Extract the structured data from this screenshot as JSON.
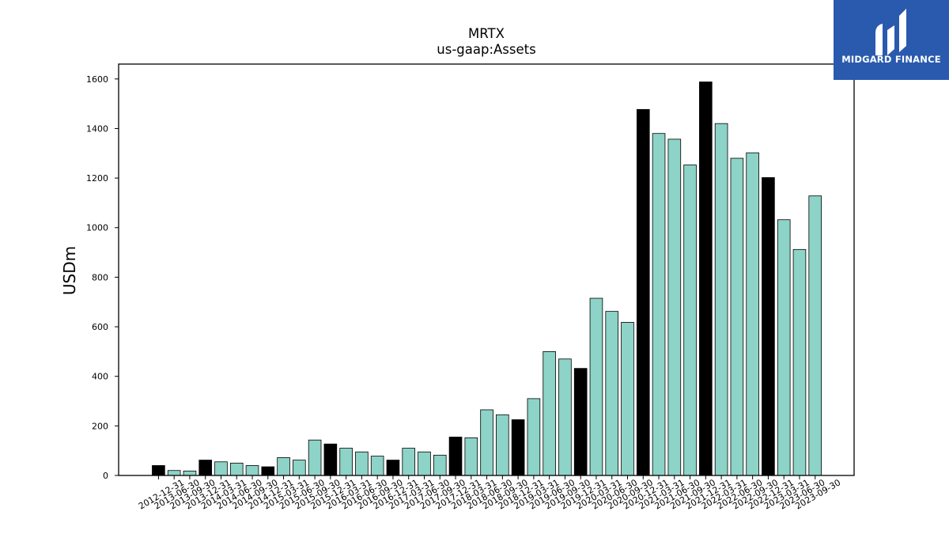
{
  "chart_data": {
    "type": "bar",
    "title": "MRTX",
    "subtitle": "us-gaap:Assets",
    "ylabel": "USDm",
    "xlabel": "",
    "ylim": [
      0,
      1660
    ],
    "yticks": [
      0,
      200,
      400,
      600,
      800,
      1000,
      1200,
      1400,
      1600
    ],
    "grid": false,
    "colors": {
      "quarter": "#8dd3c7",
      "year_end": "#000000",
      "edge": "#000000"
    },
    "categories": [
      "2012-12-31",
      "2013-06-30",
      "2013-09-30",
      "2013-12-31",
      "2014-03-31",
      "2014-06-30",
      "2014-09-30",
      "2014-12-31",
      "2015-03-31",
      "2015-06-30",
      "2015-09-30",
      "2015-12-31",
      "2016-03-31",
      "2016-06-30",
      "2016-09-30",
      "2016-12-31",
      "2017-03-31",
      "2017-06-30",
      "2017-09-30",
      "2017-12-31",
      "2018-03-31",
      "2018-06-30",
      "2018-09-30",
      "2018-12-31",
      "2019-03-31",
      "2019-06-30",
      "2019-09-30",
      "2019-12-31",
      "2020-03-31",
      "2020-06-30",
      "2020-09-30",
      "2020-12-31",
      "2021-03-31",
      "2021-06-30",
      "2021-09-30",
      "2021-12-31",
      "2022-03-31",
      "2022-06-30",
      "2022-09-30",
      "2022-12-31",
      "2023-03-31",
      "2023-06-30",
      "2023-09-30"
    ],
    "values": [
      40,
      20,
      18,
      62,
      55,
      50,
      40,
      35,
      72,
      62,
      143,
      127,
      110,
      95,
      78,
      62,
      110,
      95,
      82,
      155,
      152,
      265,
      245,
      225,
      310,
      500,
      470,
      432,
      715,
      662,
      618,
      1477,
      1380,
      1357,
      1253,
      1588,
      1420,
      1280,
      1302,
      1202,
      1032,
      912,
      1128
    ]
  },
  "logo": {
    "text": "MIDGARD FINANCE"
  }
}
